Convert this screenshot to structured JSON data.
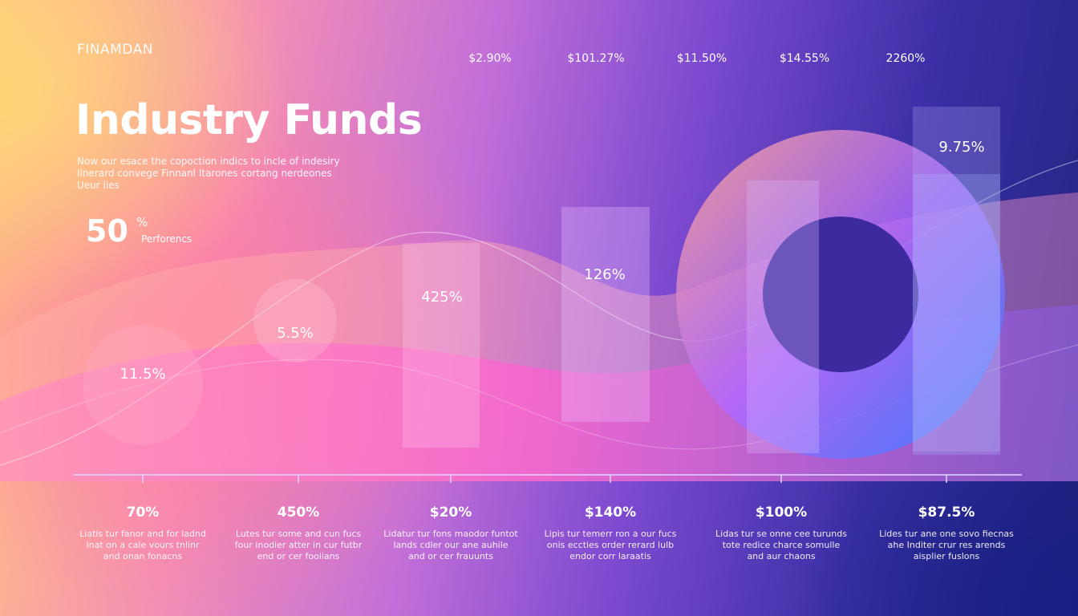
{
  "brand": "FINAMDAN",
  "top_labels": [
    "$2.90%",
    "$101.27%",
    "$11.50%",
    "$14.55%",
    "2260%"
  ],
  "header": {
    "title": "Industry Funds",
    "description": [
      "Now our esace the copoction indics to incle of indesiry",
      "Ilnerard convege Finnanl Itarones cortang nerdeones",
      "Ueur lies"
    ]
  },
  "highlight": {
    "value": "50",
    "unit": "%",
    "caption": "Perforencs"
  },
  "bubbles": [
    "11.5%",
    "5.5%",
    "425%",
    "126%",
    "9.75%"
  ],
  "columns": [
    {
      "value": "70%",
      "text": [
        "Liatis tur fanor and for ladnd",
        "Inat on a cale vours tnlinr",
        "and onan fonacns"
      ]
    },
    {
      "value": "450%",
      "text": [
        "Lutes tur some and cun fucs",
        "four inodier atter in cur futbr",
        "end or cer fooiians"
      ]
    },
    {
      "value": "$20%",
      "text": [
        "Lidatur tur fons maodor funtot",
        "lands cdler our ane auhile",
        "and or cer frauunts"
      ]
    },
    {
      "value": "$140%",
      "text": [
        "Lipis tur temerr ron a our fucs",
        "onis eccties order rerard lulb",
        "endor corr laraatis"
      ]
    },
    {
      "value": "$100%",
      "text": [
        "Lidas tur se onne cee turunds",
        "tote redice charce somulle",
        "and aur chaons"
      ]
    },
    {
      "value": "$87.5%",
      "text": [
        "Lides tur ane one sovo fiecnas",
        "ahe Inditer crur res arends",
        "aisplier fuslons"
      ]
    }
  ]
}
